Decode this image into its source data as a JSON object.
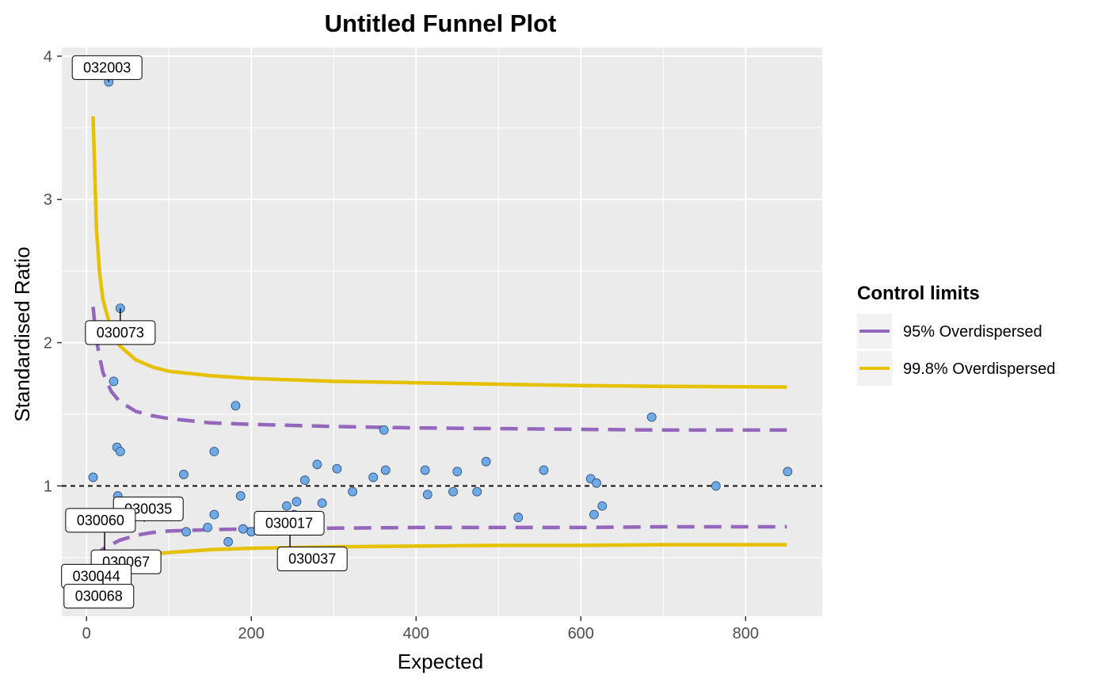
{
  "chart_data": {
    "type": "scatter",
    "title": "Untitled Funnel Plot",
    "xlabel": "Expected",
    "ylabel": "Standardised Ratio",
    "xlim": [
      -30,
      893
    ],
    "ylim": [
      0.09,
      4.06
    ],
    "x_ticks": [
      0,
      200,
      400,
      600,
      800
    ],
    "y_ticks": [
      1,
      2,
      3,
      4
    ],
    "grid": true,
    "target_line": 1,
    "legend": {
      "title": "Control limits",
      "position": "right",
      "entries": [
        {
          "label": "95% Overdispersed",
          "color": "#9467BD",
          "dash": true
        },
        {
          "label": "99.8% Overdispersed",
          "color": "#E5C100",
          "dash": false
        }
      ]
    },
    "point_color": "#6FAAE8",
    "panel_color": "#EBEBEB",
    "limits": {
      "x": [
        8,
        12,
        16,
        20,
        30,
        40,
        60,
        80,
        100,
        150,
        200,
        300,
        400,
        500,
        600,
        700,
        850
      ],
      "upper_998": [
        3.58,
        2.8,
        2.48,
        2.3,
        2.09,
        1.98,
        1.88,
        1.83,
        1.8,
        1.77,
        1.75,
        1.73,
        1.72,
        1.71,
        1.7,
        1.695,
        1.69
      ],
      "lower_998": [
        0.45,
        0.46,
        0.47,
        0.475,
        0.485,
        0.495,
        0.51,
        0.525,
        0.535,
        0.555,
        0.565,
        0.575,
        0.58,
        0.585,
        0.585,
        0.59,
        0.59
      ],
      "upper_95": [
        2.25,
        2.02,
        1.9,
        1.79,
        1.66,
        1.59,
        1.52,
        1.49,
        1.47,
        1.44,
        1.43,
        1.415,
        1.405,
        1.4,
        1.395,
        1.39,
        1.39
      ],
      "lower_95": [
        0.48,
        0.51,
        0.54,
        0.56,
        0.59,
        0.62,
        0.655,
        0.675,
        0.685,
        0.695,
        0.7,
        0.705,
        0.71,
        0.71,
        0.71,
        0.715,
        0.715
      ]
    },
    "points": [
      {
        "x": 27,
        "y": 3.82
      },
      {
        "x": 8,
        "y": 1.06
      },
      {
        "x": 41,
        "y": 2.24
      },
      {
        "x": 33,
        "y": 1.73
      },
      {
        "x": 37,
        "y": 1.27
      },
      {
        "x": 41,
        "y": 1.24
      },
      {
        "x": 38,
        "y": 0.93
      },
      {
        "x": 55,
        "y": 0.85
      },
      {
        "x": 30,
        "y": 0.49
      },
      {
        "x": 20,
        "y": 0.48
      },
      {
        "x": 22,
        "y": 0.4
      },
      {
        "x": 65,
        "y": 0.79
      },
      {
        "x": 110,
        "y": 0.82
      },
      {
        "x": 118,
        "y": 1.08
      },
      {
        "x": 121,
        "y": 0.68
      },
      {
        "x": 147,
        "y": 0.71
      },
      {
        "x": 155,
        "y": 1.24
      },
      {
        "x": 155,
        "y": 0.8
      },
      {
        "x": 172,
        "y": 0.61
      },
      {
        "x": 181,
        "y": 1.56
      },
      {
        "x": 187,
        "y": 0.93
      },
      {
        "x": 190,
        "y": 0.7
      },
      {
        "x": 200,
        "y": 0.68
      },
      {
        "x": 213,
        "y": 0.75
      },
      {
        "x": 243,
        "y": 0.86
      },
      {
        "x": 247,
        "y": 0.53
      },
      {
        "x": 252,
        "y": 0.8
      },
      {
        "x": 255,
        "y": 0.89
      },
      {
        "x": 265,
        "y": 1.04
      },
      {
        "x": 275,
        "y": 0.53
      },
      {
        "x": 280,
        "y": 1.15
      },
      {
        "x": 286,
        "y": 0.88
      },
      {
        "x": 304,
        "y": 1.12
      },
      {
        "x": 323,
        "y": 0.96
      },
      {
        "x": 348,
        "y": 1.06
      },
      {
        "x": 361,
        "y": 1.39
      },
      {
        "x": 363,
        "y": 1.11
      },
      {
        "x": 411,
        "y": 1.11
      },
      {
        "x": 414,
        "y": 0.94
      },
      {
        "x": 445,
        "y": 0.96
      },
      {
        "x": 450,
        "y": 1.1
      },
      {
        "x": 474,
        "y": 0.96
      },
      {
        "x": 485,
        "y": 1.17
      },
      {
        "x": 524,
        "y": 0.78
      },
      {
        "x": 555,
        "y": 1.11
      },
      {
        "x": 612,
        "y": 1.05
      },
      {
        "x": 616,
        "y": 0.8
      },
      {
        "x": 619,
        "y": 1.02
      },
      {
        "x": 626,
        "y": 0.86
      },
      {
        "x": 686,
        "y": 1.48
      },
      {
        "x": 764,
        "y": 1.0
      },
      {
        "x": 851,
        "y": 1.1
      }
    ],
    "labels": [
      {
        "text": "032003",
        "x": 27,
        "y": 3.82,
        "lx": 25,
        "ly": 3.92
      },
      {
        "text": "030073",
        "x": 41,
        "y": 2.24,
        "lx": 41,
        "ly": 2.07
      },
      {
        "text": "030035",
        "x": 70,
        "y": 0.75,
        "lx": 75,
        "ly": 0.84
      },
      {
        "text": "030060",
        "x": 22,
        "y": 0.48,
        "lx": 17,
        "ly": 0.76
      },
      {
        "text": "030067",
        "x": 73,
        "y": 0.5,
        "lx": 48,
        "ly": 0.47
      },
      {
        "text": "030044",
        "x": 20,
        "y": 0.4,
        "lx": 12,
        "ly": 0.37
      },
      {
        "text": "030068",
        "x": 20,
        "y": 0.38,
        "lx": 15,
        "ly": 0.23
      },
      {
        "text": "030017",
        "x": 247,
        "y": 0.53,
        "lx": 246,
        "ly": 0.74
      },
      {
        "text": "030037",
        "x": 275,
        "y": 0.53,
        "lx": 274,
        "ly": 0.49
      }
    ]
  }
}
